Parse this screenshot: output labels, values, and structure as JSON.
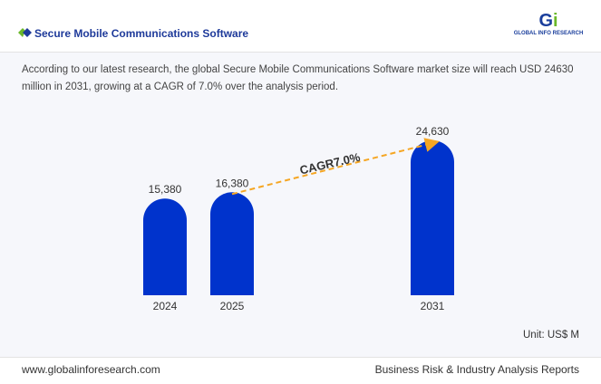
{
  "header": {
    "title": "Secure Mobile Communications Software",
    "logo_text": "GLOBAL INFO RESEARCH"
  },
  "description": "According to our latest research, the global Secure Mobile Communications Software market size will reach USD 24630 million in 2031, growing at a CAGR of 7.0% over the analysis period.",
  "footer": {
    "website": "www.globalinforesearch.com",
    "tagline": "Business Risk & Industry Analysis Reports"
  },
  "colors": {
    "bar": "#0033cc",
    "arrow": "#f5a623",
    "title": "#1e3a9a"
  },
  "chart_data": {
    "type": "bar",
    "categories": [
      "2024",
      "2025",
      "2031"
    ],
    "values": [
      15380,
      16380,
      24630
    ],
    "value_labels": [
      "15,380",
      "16,380",
      "24,630"
    ],
    "annotation": "CAGR7.0%",
    "unit": "Unit: US$ M",
    "ylim": [
      0,
      24630
    ]
  }
}
